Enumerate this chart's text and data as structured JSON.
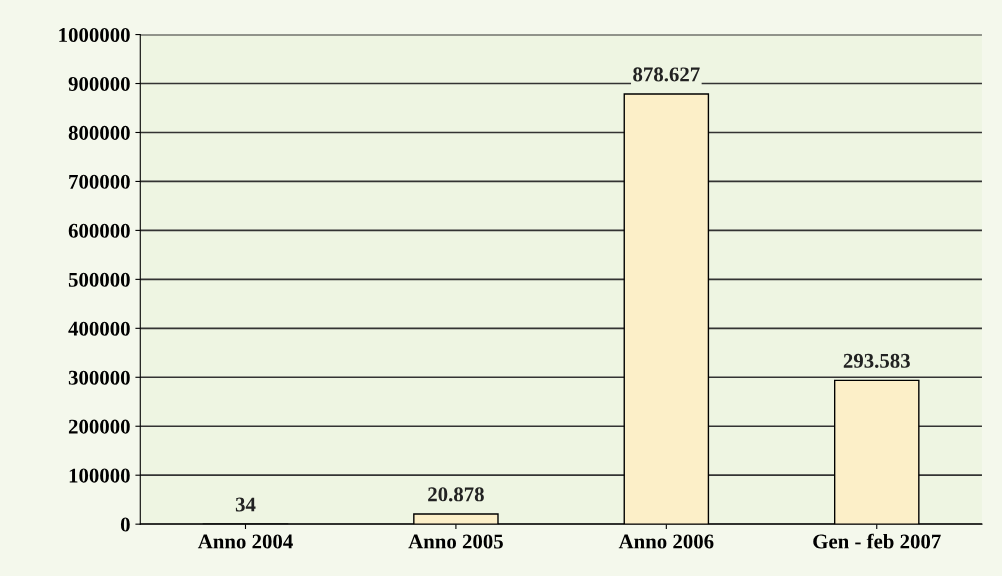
{
  "chart_data": {
    "type": "bar",
    "categories": [
      "Anno 2004",
      "Anno 2005",
      "Anno 2006",
      "Gen - feb 2007"
    ],
    "values": [
      34,
      20878,
      878627,
      293583
    ],
    "value_labels": [
      "34",
      "20.878",
      "878.627",
      "293.583"
    ],
    "color": "#fcefc8",
    "ylim": [
      0,
      1000000
    ],
    "yticks": [
      0,
      100000,
      200000,
      300000,
      400000,
      500000,
      600000,
      700000,
      800000,
      900000,
      1000000
    ],
    "grid": "y"
  }
}
